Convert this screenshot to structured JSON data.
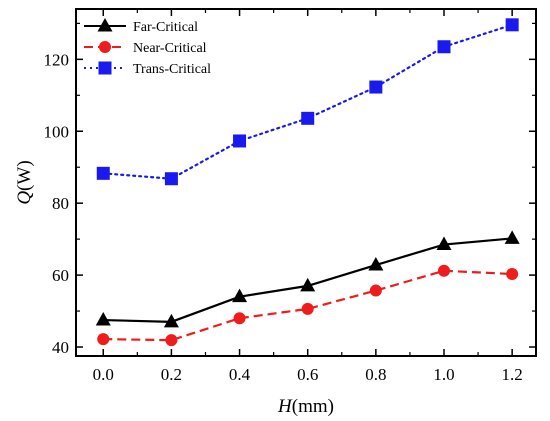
{
  "chart_data": {
    "type": "line",
    "x": [
      0.0,
      0.2,
      0.4,
      0.6,
      0.8,
      1.0,
      1.2
    ],
    "xlabel": {
      "var": "H",
      "unit": "(mm)"
    },
    "ylabel": {
      "var": "Q",
      "unit": "(W)"
    },
    "xlim": [
      -0.08,
      1.27
    ],
    "ylim": [
      37.5,
      134
    ],
    "xticks": [
      0.0,
      0.2,
      0.4,
      0.6,
      0.8,
      1.0,
      1.2
    ],
    "xtick_labels": [
      "0.0",
      "0.2",
      "0.4",
      "0.6",
      "0.8",
      "1.0",
      "1.2"
    ],
    "yticks": [
      40,
      60,
      80,
      100,
      120
    ],
    "ytick_labels": [
      "40",
      "60",
      "80",
      "100",
      "120"
    ],
    "grid": false,
    "legend_position": "top-left",
    "series": [
      {
        "name": "Far-Critical",
        "color": "#000000",
        "marker": "triangle",
        "line": "solid",
        "values": [
          47.5,
          47.0,
          54.0,
          57.0,
          62.8,
          68.5,
          70.2
        ]
      },
      {
        "name": "Near-Critical",
        "color": "#ee1c1c",
        "marker": "circle",
        "line": "dashed",
        "values": [
          42.2,
          41.9,
          48.0,
          50.6,
          55.7,
          61.2,
          60.3
        ]
      },
      {
        "name": "Trans-Critical",
        "color": "#1a1aee",
        "marker": "square",
        "line": "dotted",
        "values": [
          88.3,
          86.8,
          97.3,
          103.6,
          112.3,
          123.5,
          129.6
        ]
      }
    ]
  }
}
